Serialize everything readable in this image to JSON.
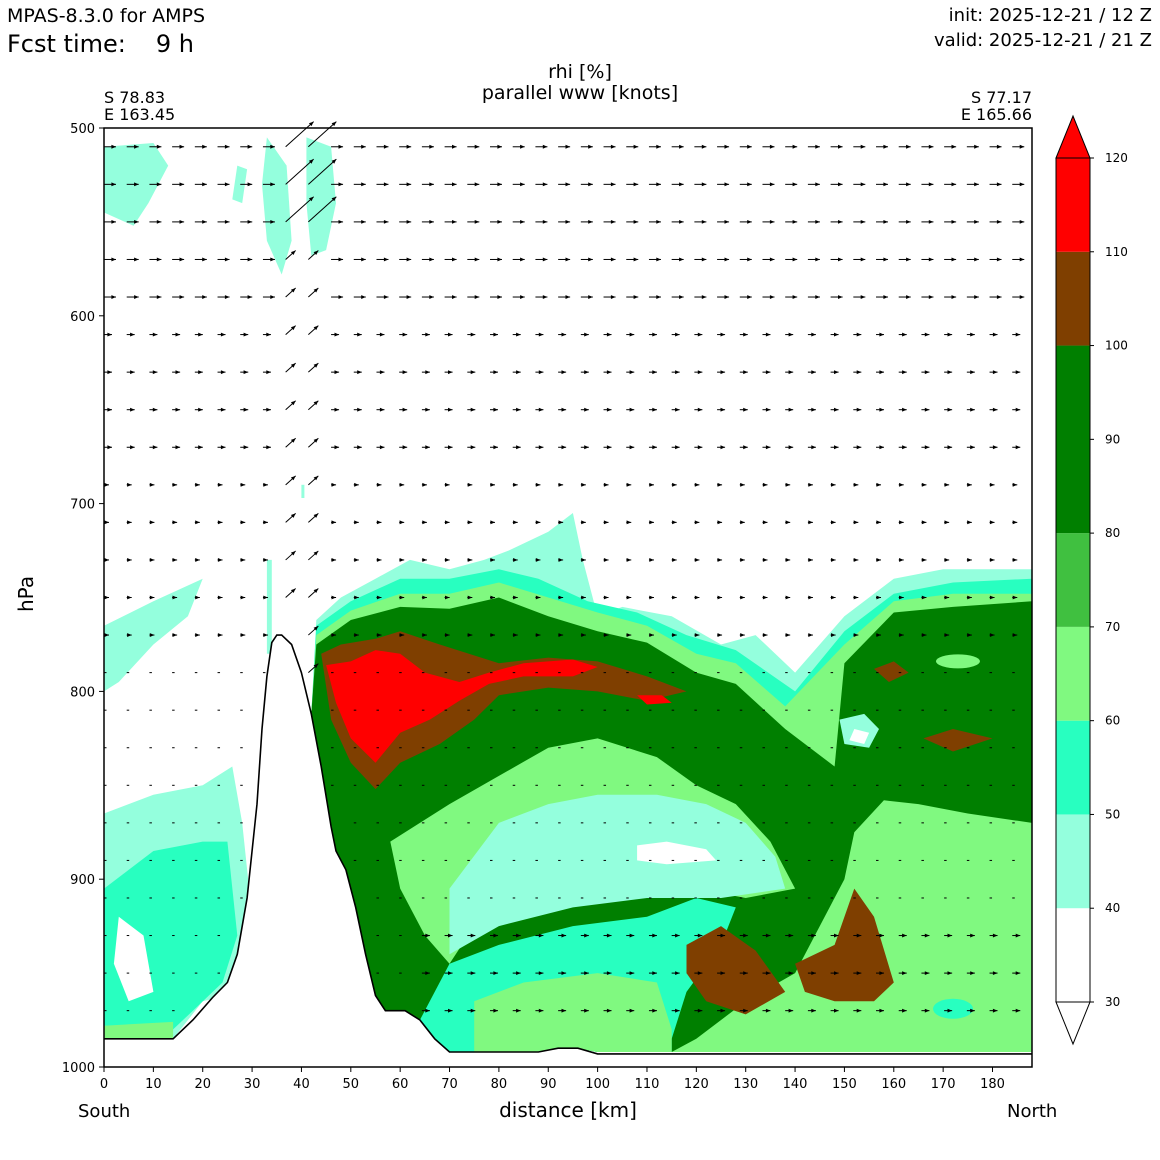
{
  "header": {
    "model": "MPAS-8.3.0 for AMPS",
    "fcst_label": "Fcst time:",
    "fcst_value": "9 h",
    "init": "init: 2025-12-21 / 12 Z",
    "valid": "valid: 2025-12-21 / 21 Z"
  },
  "chart_data": {
    "type": "contour",
    "title": "rhi [%]",
    "subtitle": "parallel www [knots]",
    "xlabel": "distance [km]",
    "ylabel": "hPa",
    "xlim": [
      0,
      188
    ],
    "ylim": [
      1000,
      500
    ],
    "x_ticks": [
      "0",
      "10",
      "20",
      "30",
      "40",
      "50",
      "60",
      "70",
      "80",
      "90",
      "100",
      "110",
      "120",
      "130",
      "140",
      "150",
      "160",
      "170",
      "180"
    ],
    "y_ticks": [
      "500",
      "600",
      "700",
      "800",
      "900",
      "1000"
    ],
    "start_point": {
      "lat": "S 78.83",
      "lon": "E 163.45"
    },
    "end_point": {
      "lat": "S 77.17",
      "lon": "E 165.66"
    },
    "left_end_label": "South",
    "right_end_label": "North",
    "colorbar": {
      "levels": [
        "30",
        "40",
        "50",
        "60",
        "70",
        "80",
        "90",
        "100",
        "110",
        "120"
      ],
      "bands": [
        {
          "from": 30,
          "to": 40,
          "color": "#ffffff"
        },
        {
          "from": 40,
          "to": 50,
          "color": "#94ffdd"
        },
        {
          "from": 50,
          "to": 60,
          "color": "#28ffc0"
        },
        {
          "from": 60,
          "to": 70,
          "color": "#80f980"
        },
        {
          "from": 70,
          "to": 80,
          "color": "#40c040"
        },
        {
          "from": 80,
          "to": 100,
          "color": "#007f00"
        },
        {
          "from": 100,
          "to": 110,
          "color": "#7f3f00"
        },
        {
          "from": 110,
          "to": 120,
          "color": "#ff0000"
        }
      ]
    },
    "terrain": [
      [
        0,
        985
      ],
      [
        14,
        985
      ],
      [
        18,
        975
      ],
      [
        22,
        963
      ],
      [
        25,
        955
      ],
      [
        27,
        940
      ],
      [
        29,
        910
      ],
      [
        31,
        860
      ],
      [
        32,
        820
      ],
      [
        33,
        792
      ],
      [
        34,
        774
      ],
      [
        35,
        770
      ],
      [
        36,
        770
      ],
      [
        38,
        775
      ],
      [
        40,
        790
      ],
      [
        42,
        812
      ],
      [
        44,
        840
      ],
      [
        46,
        872
      ],
      [
        47,
        885
      ],
      [
        49,
        895
      ],
      [
        51,
        915
      ],
      [
        53,
        940
      ],
      [
        55,
        962
      ],
      [
        57,
        970
      ],
      [
        61,
        970
      ],
      [
        64,
        975
      ],
      [
        67,
        985
      ],
      [
        70,
        992
      ],
      [
        88,
        992
      ],
      [
        92,
        990
      ],
      [
        96,
        990
      ],
      [
        100,
        993
      ],
      [
        188,
        993
      ]
    ],
    "wind_levels_hpa": [
      510,
      530,
      550,
      570,
      590,
      610,
      630,
      650,
      670,
      690,
      710,
      730,
      750,
      770,
      790,
      810,
      830,
      850,
      870,
      890,
      910,
      930,
      950,
      970,
      990
    ]
  }
}
